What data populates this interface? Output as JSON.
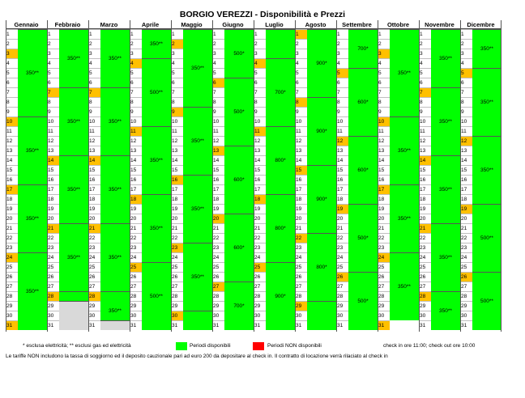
{
  "title": "BORGIO VEREZZI - Disponibilità e Prezzi",
  "colors": {
    "available": "#00ff00",
    "unavailable": "#ff0000",
    "saturday": "#ffc000",
    "empty": "#d9d9d9"
  },
  "months": [
    {
      "name": "Gennaio",
      "days": 31,
      "weekends": [
        3,
        10,
        17,
        24,
        31
      ],
      "prices": [
        {
          "from": 1,
          "to": 9,
          "label": "350**"
        },
        {
          "from": 10,
          "to": 16,
          "label": "350**"
        },
        {
          "from": 17,
          "to": 23,
          "label": "350**"
        },
        {
          "from": 24,
          "to": 31,
          "label": "350**"
        }
      ]
    },
    {
      "name": "Febbraio",
      "days": 31,
      "weekends": [
        7,
        14,
        21,
        28
      ],
      "prices": [
        {
          "from": 1,
          "to": 6,
          "label": "350**"
        },
        {
          "from": 7,
          "to": 13,
          "label": "350**"
        },
        {
          "from": 14,
          "to": 20,
          "label": "350**"
        },
        {
          "from": 21,
          "to": 27,
          "label": "350**"
        },
        {
          "from": 28,
          "to": 31,
          "label": "350**"
        }
      ]
    },
    {
      "name": "Marzo",
      "days": 31,
      "weekends": [
        7,
        14,
        21,
        28
      ],
      "prices": [
        {
          "from": 1,
          "to": 6,
          "label": "350**"
        },
        {
          "from": 7,
          "to": 13,
          "label": "350**"
        },
        {
          "from": 14,
          "to": 20,
          "label": "350**"
        },
        {
          "from": 21,
          "to": 27,
          "label": "350**"
        },
        {
          "from": 28,
          "to": 31,
          "label": "350**"
        }
      ]
    },
    {
      "name": "Aprile",
      "days": 31,
      "weekends": [
        4,
        11,
        18,
        25
      ],
      "prices": [
        {
          "from": 1,
          "to": 3,
          "label": "350**"
        },
        {
          "from": 4,
          "to": 10,
          "label": "500**"
        },
        {
          "from": 11,
          "to": 17,
          "label": "350**"
        },
        {
          "from": 18,
          "to": 24,
          "label": "350**"
        },
        {
          "from": 25,
          "to": 31,
          "label": "500**"
        }
      ]
    },
    {
      "name": "Maggio",
      "days": 31,
      "weekends": [
        2,
        9,
        16,
        23,
        30
      ],
      "prices": [
        {
          "from": 1,
          "to": 8,
          "label": "350**"
        },
        {
          "from": 9,
          "to": 15,
          "label": "350**"
        },
        {
          "from": 16,
          "to": 22,
          "label": "350**"
        },
        {
          "from": 23,
          "to": 29,
          "label": "350**"
        },
        {
          "from": 30,
          "to": 31,
          "label": ""
        }
      ]
    },
    {
      "name": "Giugno",
      "days": 31,
      "weekends": [
        6,
        13,
        20,
        27
      ],
      "prices": [
        {
          "from": 1,
          "to": 5,
          "label": "500*"
        },
        {
          "from": 6,
          "to": 12,
          "label": "500*"
        },
        {
          "from": 13,
          "to": 19,
          "label": "600*"
        },
        {
          "from": 20,
          "to": 26,
          "label": "600*"
        },
        {
          "from": 27,
          "to": 31,
          "label": "700*"
        }
      ]
    },
    {
      "name": "Luglio",
      "days": 31,
      "weekends": [
        4,
        11,
        18,
        25
      ],
      "prices": [
        {
          "from": 1,
          "to": 3,
          "label": ""
        },
        {
          "from": 4,
          "to": 10,
          "label": "700*"
        },
        {
          "from": 11,
          "to": 17,
          "label": "800*"
        },
        {
          "from": 18,
          "to": 24,
          "label": "800*"
        },
        {
          "from": 25,
          "to": 31,
          "label": "900*"
        }
      ]
    },
    {
      "name": "Agosto",
      "days": 31,
      "weekends": [
        1,
        8,
        15,
        22,
        29
      ],
      "prices": [
        {
          "from": 1,
          "to": 7,
          "label": "900*"
        },
        {
          "from": 8,
          "to": 14,
          "label": "900*"
        },
        {
          "from": 15,
          "to": 21,
          "label": "900*"
        },
        {
          "from": 22,
          "to": 28,
          "label": "800*"
        },
        {
          "from": 29,
          "to": 31,
          "label": ""
        }
      ]
    },
    {
      "name": "Settembre",
      "days": 31,
      "weekends": [
        5,
        12,
        19,
        26
      ],
      "prices": [
        {
          "from": 1,
          "to": 4,
          "label": "700*"
        },
        {
          "from": 5,
          "to": 11,
          "label": "600*"
        },
        {
          "from": 12,
          "to": 18,
          "label": "600*"
        },
        {
          "from": 19,
          "to": 25,
          "label": "500*"
        },
        {
          "from": 26,
          "to": 31,
          "label": "500*"
        }
      ]
    },
    {
      "name": "Ottobre",
      "days": 31,
      "weekends": [
        3,
        10,
        17,
        24,
        31
      ],
      "prices": [
        {
          "from": 1,
          "to": 9,
          "label": "350**"
        },
        {
          "from": 10,
          "to": 16,
          "label": "350**"
        },
        {
          "from": 17,
          "to": 23,
          "label": "350**"
        },
        {
          "from": 24,
          "to": 30,
          "label": "350**"
        }
      ]
    },
    {
      "name": "Novembre",
      "days": 31,
      "weekends": [
        7,
        14,
        21,
        28
      ],
      "prices": [
        {
          "from": 1,
          "to": 6,
          "label": "350**"
        },
        {
          "from": 7,
          "to": 13,
          "label": "350**"
        },
        {
          "from": 14,
          "to": 20,
          "label": "350**"
        },
        {
          "from": 21,
          "to": 27,
          "label": "350**"
        },
        {
          "from": 28,
          "to": 31,
          "label": "350**"
        }
      ]
    },
    {
      "name": "Dicembre",
      "days": 31,
      "weekends": [
        5,
        12,
        19,
        26
      ],
      "prices": [
        {
          "from": 1,
          "to": 4,
          "label": "350**"
        },
        {
          "from": 5,
          "to": 11,
          "label": "350**"
        },
        {
          "from": 12,
          "to": 18,
          "label": "350**"
        },
        {
          "from": 19,
          "to": 25,
          "label": "500**"
        },
        {
          "from": 26,
          "to": 31,
          "label": "500**"
        }
      ]
    }
  ],
  "empty_cells": [
    {
      "month": 1,
      "from": 29,
      "to": 31
    },
    {
      "month": 2,
      "from": 31,
      "to": 31
    }
  ],
  "legend": {
    "note1": "* esclusa elettricità; ** esclusi gas ed elettricità",
    "available": "Periodi disponibili",
    "unavailable": "Periodi NON disponibili",
    "checkin": "check in ore 11:00; check out ore 10:00",
    "note2": "Le tariffe NON includono la tassa di soggiorno ed il deposito cauzionale pari ad euro 200 da depositare al check in. Il contratto di locazione verrà rilaciato al check in"
  }
}
